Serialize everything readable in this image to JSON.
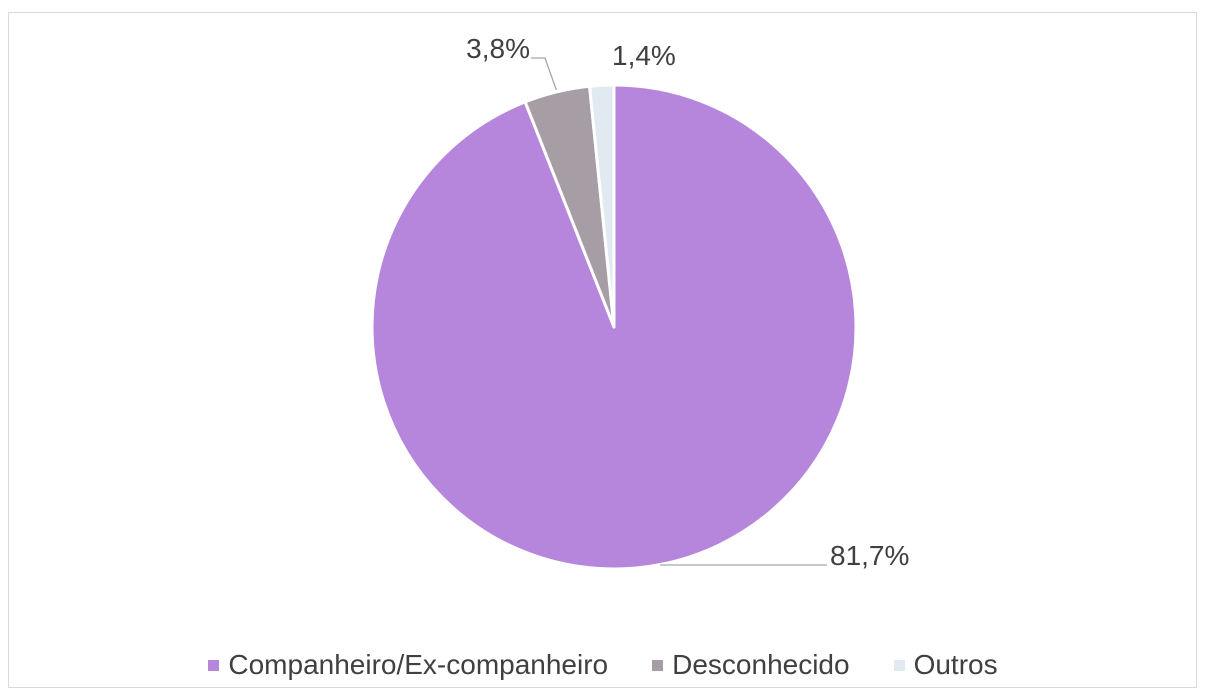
{
  "chart_data": {
    "type": "pie",
    "title": "",
    "start_angle_deg": 0,
    "direction": "clockwise",
    "legend_position": "bottom",
    "slices": [
      {
        "label": "Companheiro/Ex-companheiro",
        "value": 81.7,
        "value_label": "81,7%",
        "color": "#b586db"
      },
      {
        "label": "Desconhecido",
        "value": 3.8,
        "value_label": "3,8%",
        "color": "#a79ea5"
      },
      {
        "label": "Outros",
        "value": 1.4,
        "value_label": "1,4%",
        "color": "#e2eaf1"
      }
    ]
  },
  "legend": {
    "items": [
      {
        "label": "Companheiro/Ex-companheiro",
        "color": "#b586db"
      },
      {
        "label": "Desconhecido",
        "color": "#a79ea5"
      },
      {
        "label": "Outros",
        "color": "#e2eaf1"
      }
    ]
  }
}
